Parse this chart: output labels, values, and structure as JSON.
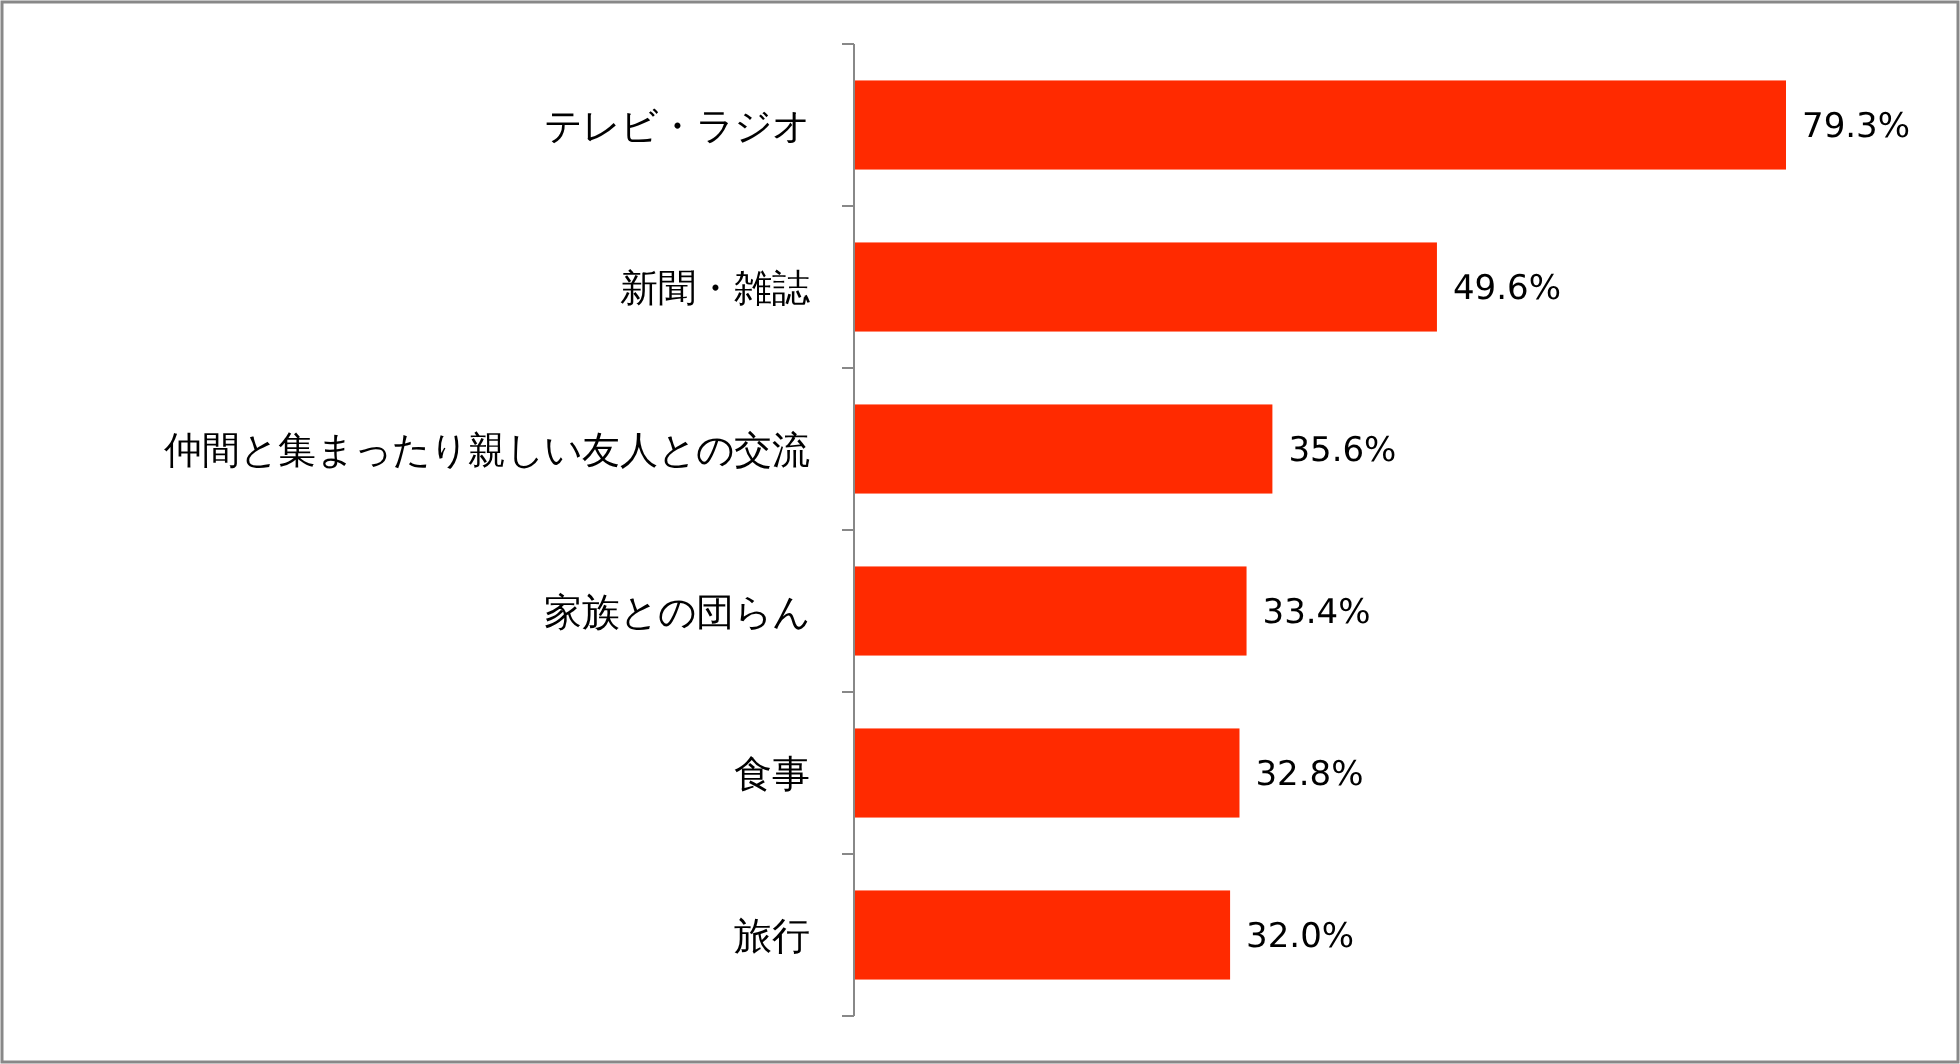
{
  "chart_data": {
    "type": "bar",
    "orientation": "horizontal",
    "categories": [
      "テレビ・ラジオ",
      "新聞・雑誌",
      "仲間と集まったり親しい友人との交流",
      "家族との団らん",
      "食事",
      "旅行"
    ],
    "values": [
      79.3,
      49.6,
      35.6,
      33.4,
      32.8,
      32.0
    ],
    "value_labels": [
      "79.3%",
      "49.6%",
      "35.6%",
      "33.4%",
      "32.8%",
      "32.0%"
    ],
    "color": "#ff2a00"
  }
}
